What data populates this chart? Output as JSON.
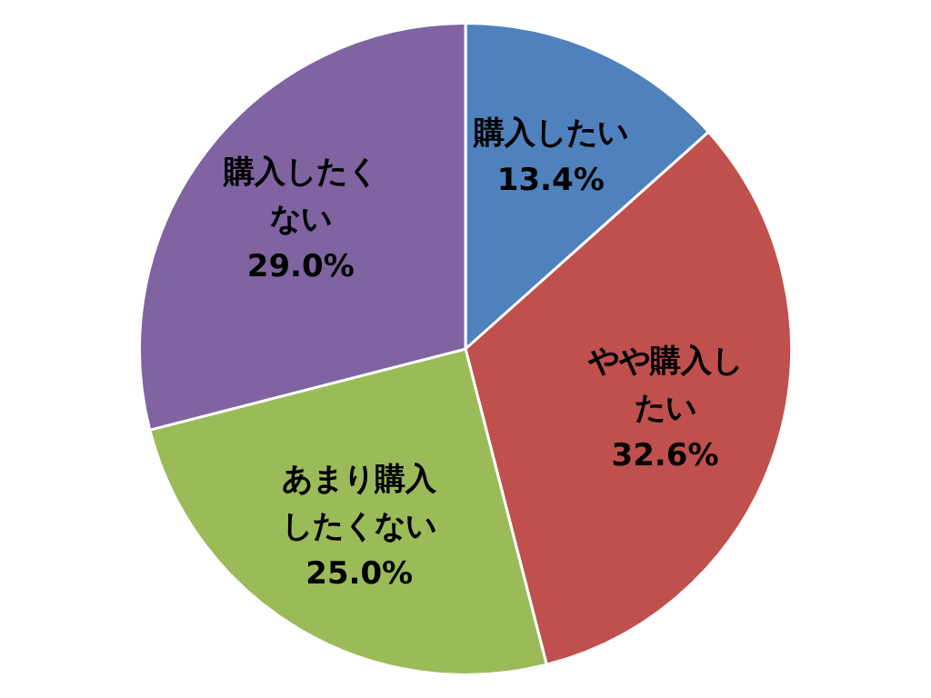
{
  "chart_data": {
    "type": "pie",
    "categories": [
      "購入したい",
      "やや購入したい",
      "あまり購入したくない",
      "購入したくない"
    ],
    "values": [
      13.4,
      32.6,
      25.0,
      29.0
    ],
    "colors": [
      "#4f81bd",
      "#c0504d",
      "#9bbb59",
      "#8064a2"
    ],
    "value_labels": [
      "13.4%",
      "32.6%",
      "25.0%",
      "29.0%"
    ],
    "legend": false
  }
}
